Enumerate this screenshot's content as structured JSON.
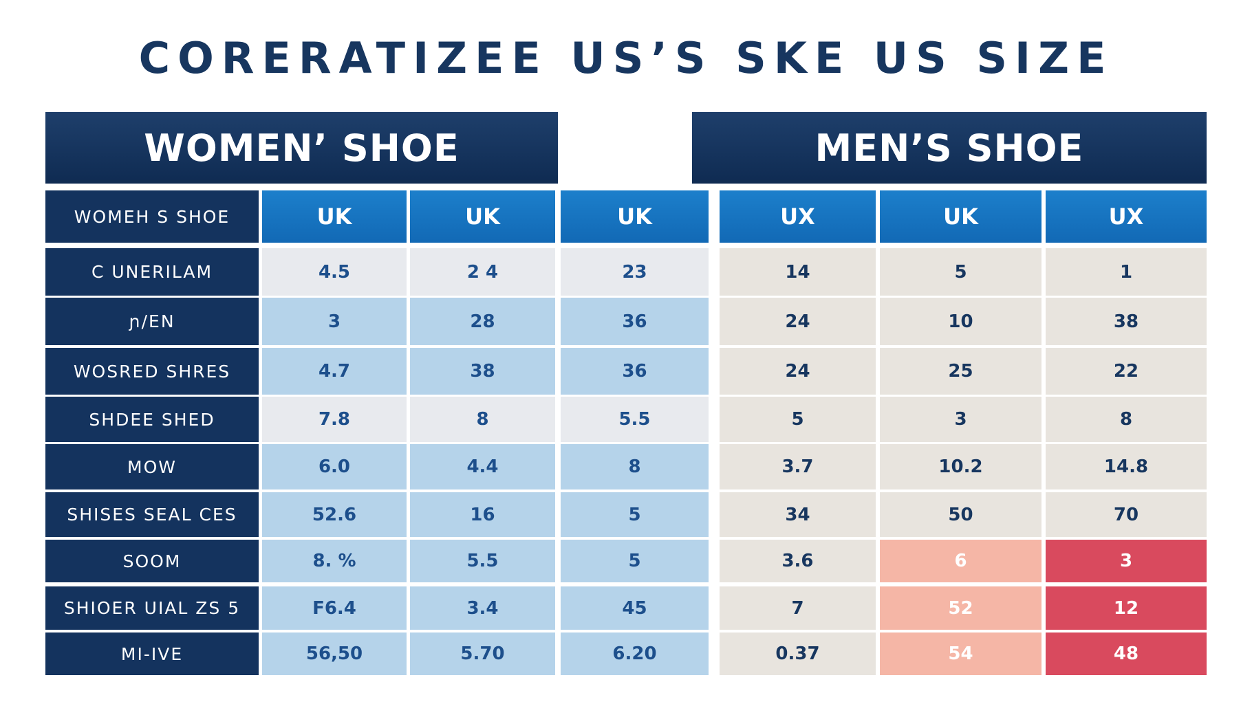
{
  "title": "CORERATIZEE US’S SKE US SIZE",
  "women_header": "WOMEN’ SHOE",
  "men_header": "MEN’S SHOE",
  "corner_label": "WOMEH S SHOE",
  "column_headers": [
    "UK",
    "UK",
    "UK",
    "UX",
    "UK",
    "UX"
  ],
  "rows": [
    {
      "label": "C UNERILAM",
      "women": [
        "4.5",
        "2 4",
        "23"
      ],
      "men": [
        "14",
        "5",
        "1"
      ]
    },
    {
      "label": "ɲ/EN",
      "women": [
        "3",
        "28",
        "36"
      ],
      "men": [
        "24",
        "10",
        "38"
      ]
    },
    {
      "label": "WOSRED SHRES",
      "women": [
        "4.7",
        "38",
        "36"
      ],
      "men": [
        "24",
        "25",
        "22"
      ]
    },
    {
      "label": "SHDEE SHED",
      "women": [
        "7.8",
        "8",
        "5.5"
      ],
      "men": [
        "5",
        "3",
        "8"
      ]
    },
    {
      "label": "MOW",
      "women": [
        "6.0",
        "4.4",
        "8"
      ],
      "men": [
        "3.7",
        "10.2",
        "14.8"
      ]
    },
    {
      "label": "SHISES SEAL CES",
      "women": [
        "52.6",
        "16",
        "5"
      ],
      "men": [
        "34",
        "50",
        "70"
      ]
    },
    {
      "label": "SOOM",
      "women": [
        "8. %",
        "5.5",
        "5"
      ],
      "men": [
        "3.6",
        "6",
        "3"
      ]
    },
    {
      "label": "SHIOER UIAL ZS 5",
      "women": [
        "F6.4",
        "3.4",
        "45"
      ],
      "men": [
        "7",
        "52",
        "12"
      ]
    },
    {
      "label": "MI-IVE",
      "women": [
        "56,50",
        "5.70",
        "6.20"
      ],
      "men": [
        "0.37",
        "54",
        "48"
      ]
    }
  ],
  "colors": {
    "navy": "#14335e",
    "header_blue": "#1269b5",
    "light_blue": "#b5d3ea",
    "salmon": "#f5b6a6",
    "red": "#d94a5e"
  }
}
